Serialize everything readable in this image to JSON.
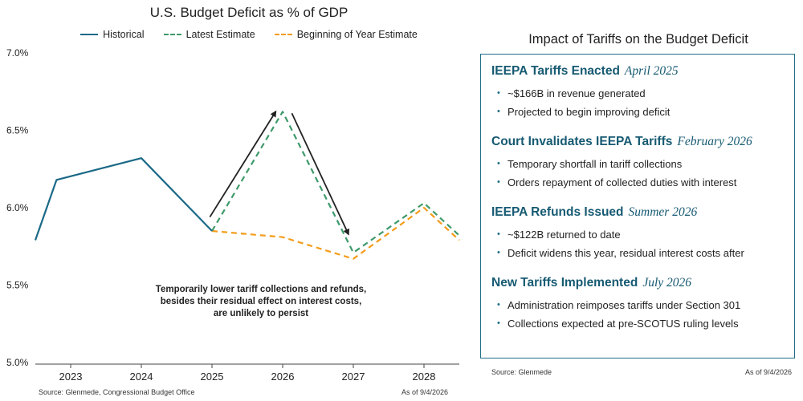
{
  "chart_data": {
    "type": "line",
    "title": "U.S. Budget Deficit as % of GDP",
    "xlabel": "",
    "ylabel": "",
    "x_ticks": [
      "2023",
      "2024",
      "2025",
      "2026",
      "2027",
      "2028"
    ],
    "y_ticks": [
      "7.0%",
      "6.5%",
      "6.0%",
      "5.5%",
      "5.0%"
    ],
    "xlim": [
      2022.5,
      2028.5
    ],
    "ylim": [
      5.0,
      7.0
    ],
    "grid": false,
    "legend_position": "top",
    "series": [
      {
        "name": "Historical",
        "color": "#1b6987",
        "dash": "solid",
        "points": [
          [
            2022.5,
            5.79
          ],
          [
            2022.8,
            6.18
          ],
          [
            2024.0,
            6.32
          ],
          [
            2025.0,
            5.85
          ]
        ]
      },
      {
        "name": "Latest Estimate",
        "color": "#3f9a6b",
        "dash": "dashed",
        "points": [
          [
            2025.0,
            5.85
          ],
          [
            2026.0,
            6.62
          ],
          [
            2027.0,
            5.71
          ],
          [
            2028.0,
            6.03
          ],
          [
            2028.5,
            5.82
          ]
        ]
      },
      {
        "name": "Beginning of Year Estimate",
        "color": "#f39c1a",
        "dash": "dashed",
        "points": [
          [
            2025.0,
            5.85
          ],
          [
            2026.0,
            5.81
          ],
          [
            2027.0,
            5.67
          ],
          [
            2028.0,
            6.0
          ],
          [
            2028.5,
            5.79
          ]
        ]
      }
    ],
    "arrows": [
      {
        "from": [
          2024.97,
          5.94
        ],
        "to": [
          2025.9,
          6.62
        ]
      },
      {
        "from": [
          2026.13,
          6.61
        ],
        "to": [
          2026.93,
          5.83
        ]
      }
    ],
    "annotation": "Temporarily lower tariff collections and refunds, besides their residual effect on interest costs, are unlikely to persist"
  },
  "chart_source": "Source: Glenmede, Congressional Budget Office",
  "chart_asof": "As of 9/4/2026",
  "panel": {
    "title": "Impact of Tariffs on the Budget Deficit",
    "sections": [
      {
        "heading": "IEEPA Tariffs Enacted",
        "date": "April 2025",
        "bullets": [
          "~$166B in revenue generated",
          "Projected to begin improving deficit"
        ]
      },
      {
        "heading": "Court Invalidates IEEPA Tariffs",
        "date": "February 2026",
        "bullets": [
          "Temporary shortfall in tariff collections",
          "Orders repayment of collected duties with interest"
        ]
      },
      {
        "heading": "IEEPA Refunds Issued",
        "date": "Summer 2026",
        "bullets": [
          "~$122B returned to date",
          "Deficit widens this year, residual interest costs after"
        ]
      },
      {
        "heading": "New Tariffs Implemented",
        "date": "July 2026",
        "bullets": [
          "Administration reimposes tariffs under Section 301",
          "Collections expected at pre-SCOTUS ruling levels"
        ]
      }
    ],
    "source": "Source: Glenmede",
    "asof": "As of 9/4/2026"
  },
  "colors": {
    "panel_border": "#1f6f86",
    "heading": "#165a72",
    "arrow": "#222222"
  }
}
